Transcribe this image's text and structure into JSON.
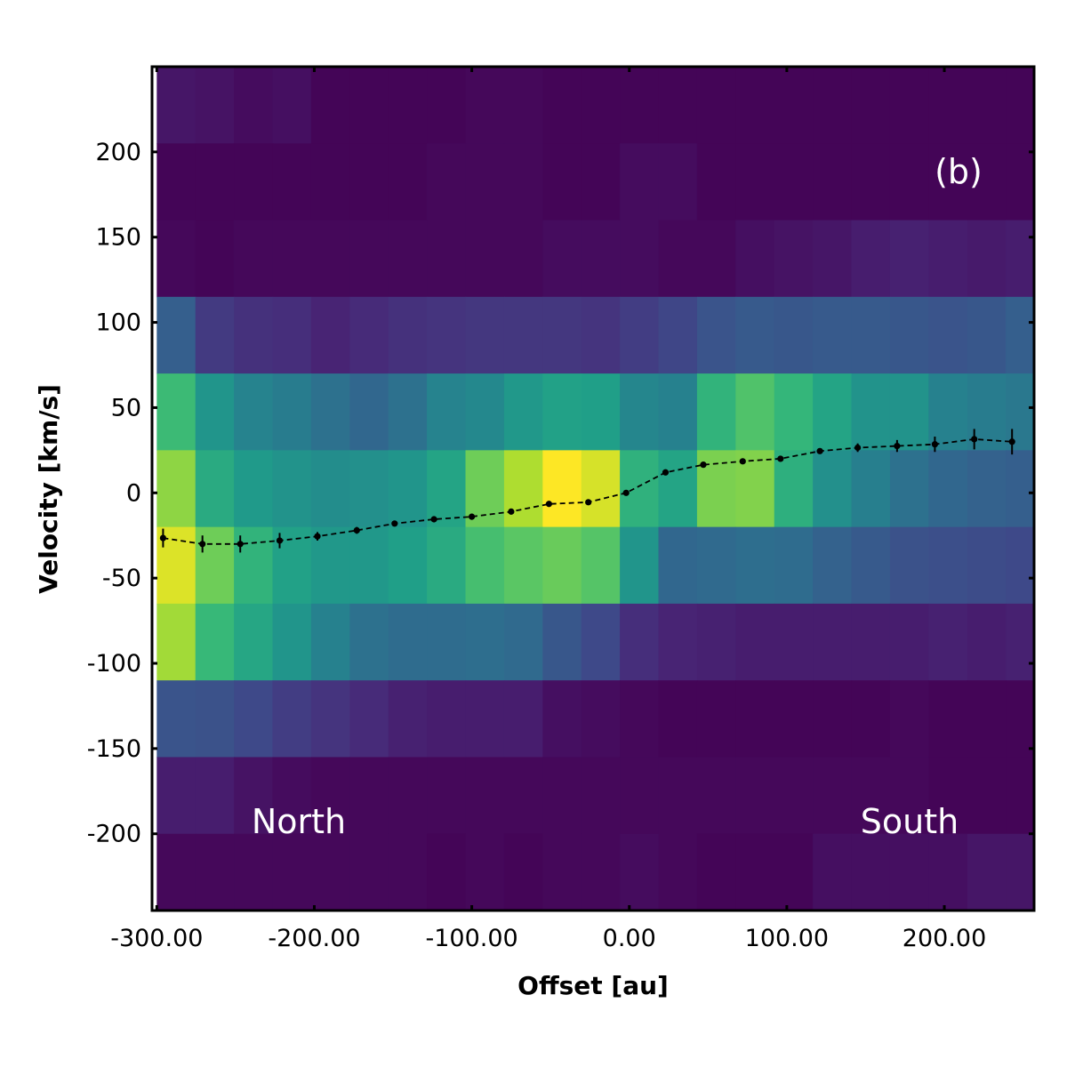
{
  "chart_data": {
    "type": "heatmap",
    "title": "",
    "panel_label": "(b)",
    "xlabel": "Offset [au]",
    "ylabel": "Velocity [km/s]",
    "xlim": [
      -303,
      257
    ],
    "ylim": [
      -245,
      250
    ],
    "x_ticks": [
      -300,
      -200,
      -100,
      0,
      100,
      200
    ],
    "x_tick_labels": [
      "-300.00",
      "-200.00",
      "-100.00",
      "0.00",
      "100.00",
      "200.00"
    ],
    "y_ticks": [
      200,
      150,
      100,
      50,
      0,
      -50,
      -100,
      -150,
      -200
    ],
    "y_tick_labels": [
      "200",
      "150",
      "100",
      "50",
      "0",
      "-50",
      "-100",
      "-150",
      "-200"
    ],
    "annotations": [
      {
        "text": "North",
        "x": -237,
        "y": -192
      },
      {
        "text": "South",
        "x": 150,
        "y": -192
      }
    ],
    "heatmap": {
      "colormap": "viridis",
      "x_edges": [
        -300,
        -275.5,
        -251,
        -226.5,
        -202,
        -177.5,
        -153,
        -128.5,
        -104,
        -79.5,
        -55,
        -30.5,
        -6,
        18.5,
        43,
        67.5,
        92,
        116.5,
        141,
        165.5,
        190,
        214.5,
        239,
        257
      ],
      "y_edges": [
        250,
        205,
        160,
        115,
        70,
        25,
        -20,
        -65,
        -110,
        -155,
        -200,
        -245
      ],
      "values": [
        [
          0.06,
          0.05,
          0.03,
          0.04,
          0.01,
          0.01,
          0.01,
          0.01,
          0.02,
          0.02,
          0.01,
          0.01,
          0.01,
          0.01,
          0.01,
          0.01,
          0.01,
          0.01,
          0.01,
          0.01,
          0.01,
          0.01,
          0.01
        ],
        [
          0.01,
          0.01,
          0.01,
          0.01,
          0.01,
          0.01,
          0.01,
          0.02,
          0.02,
          0.02,
          0.01,
          0.01,
          0.03,
          0.03,
          0.01,
          0.01,
          0.01,
          0.01,
          0.01,
          0.01,
          0.01,
          0.01,
          0.01
        ],
        [
          0.02,
          0.01,
          0.02,
          0.02,
          0.02,
          0.02,
          0.02,
          0.02,
          0.02,
          0.02,
          0.03,
          0.03,
          0.03,
          0.02,
          0.02,
          0.04,
          0.05,
          0.06,
          0.08,
          0.09,
          0.08,
          0.07,
          0.08
        ],
        [
          0.3,
          0.17,
          0.14,
          0.13,
          0.1,
          0.12,
          0.14,
          0.15,
          0.16,
          0.16,
          0.16,
          0.15,
          0.18,
          0.21,
          0.26,
          0.28,
          0.27,
          0.28,
          0.28,
          0.27,
          0.26,
          0.27,
          0.3
        ],
        [
          0.68,
          0.52,
          0.45,
          0.42,
          0.37,
          0.33,
          0.37,
          0.45,
          0.47,
          0.53,
          0.57,
          0.56,
          0.46,
          0.44,
          0.65,
          0.72,
          0.66,
          0.58,
          0.51,
          0.51,
          0.44,
          0.42,
          0.4
        ],
        [
          0.83,
          0.61,
          0.54,
          0.51,
          0.49,
          0.5,
          0.52,
          0.58,
          0.78,
          0.88,
          1.0,
          0.94,
          0.64,
          0.58,
          0.8,
          0.81,
          0.63,
          0.5,
          0.43,
          0.37,
          0.33,
          0.31,
          0.3
        ],
        [
          0.95,
          0.78,
          0.65,
          0.57,
          0.53,
          0.53,
          0.56,
          0.61,
          0.7,
          0.74,
          0.77,
          0.73,
          0.52,
          0.33,
          0.34,
          0.36,
          0.35,
          0.31,
          0.28,
          0.25,
          0.24,
          0.23,
          0.22
        ],
        [
          0.86,
          0.67,
          0.59,
          0.52,
          0.44,
          0.37,
          0.35,
          0.35,
          0.36,
          0.34,
          0.27,
          0.22,
          0.13,
          0.1,
          0.09,
          0.08,
          0.08,
          0.08,
          0.08,
          0.08,
          0.09,
          0.08,
          0.09
        ],
        [
          0.26,
          0.25,
          0.22,
          0.18,
          0.15,
          0.12,
          0.09,
          0.08,
          0.08,
          0.08,
          0.04,
          0.03,
          0.02,
          0.01,
          0.01,
          0.01,
          0.01,
          0.01,
          0.01,
          0.02,
          0.01,
          0.01,
          0.01
        ],
        [
          0.08,
          0.08,
          0.05,
          0.03,
          0.02,
          0.02,
          0.02,
          0.02,
          0.02,
          0.02,
          0.02,
          0.02,
          0.02,
          0.02,
          0.02,
          0.02,
          0.02,
          0.02,
          0.02,
          0.02,
          0.01,
          0.01,
          0.01
        ],
        [
          0.02,
          0.02,
          0.02,
          0.02,
          0.02,
          0.02,
          0.02,
          0.01,
          0.02,
          0.01,
          0.02,
          0.02,
          0.03,
          0.02,
          0.01,
          0.01,
          0.01,
          0.04,
          0.04,
          0.04,
          0.04,
          0.06,
          0.06
        ]
      ]
    },
    "series": [
      {
        "name": "centroid velocity",
        "style": "dashed line with markers and error bars",
        "color": "#000000",
        "points": [
          {
            "x": -296,
            "y": -26.5,
            "err": 5.5
          },
          {
            "x": -271,
            "y": -30,
            "err": 5
          },
          {
            "x": -247,
            "y": -30,
            "err": 5
          },
          {
            "x": -222,
            "y": -28,
            "err": 4.5
          },
          {
            "x": -198,
            "y": -25.5,
            "err": 2.5
          },
          {
            "x": -173,
            "y": -22,
            "err": 2
          },
          {
            "x": -149,
            "y": -18,
            "err": 1.5
          },
          {
            "x": -124,
            "y": -15.5,
            "err": 1.5
          },
          {
            "x": -100,
            "y": -14,
            "err": 1.5
          },
          {
            "x": -75,
            "y": -11,
            "err": 1.5
          },
          {
            "x": -51,
            "y": -6.5,
            "err": 1.5
          },
          {
            "x": -26,
            "y": -5.5,
            "err": 1.5
          },
          {
            "x": -2,
            "y": 0,
            "err": 1.5
          },
          {
            "x": 23,
            "y": 12,
            "err": 1.5
          },
          {
            "x": 47,
            "y": 16.5,
            "err": 1.5
          },
          {
            "x": 72,
            "y": 18.5,
            "err": 1.5
          },
          {
            "x": 96,
            "y": 20,
            "err": 1.5
          },
          {
            "x": 121,
            "y": 24.5,
            "err": 1.5
          },
          {
            "x": 145,
            "y": 26.5,
            "err": 2.5
          },
          {
            "x": 170,
            "y": 27.5,
            "err": 3.5
          },
          {
            "x": 194,
            "y": 28.5,
            "err": 4.5
          },
          {
            "x": 219,
            "y": 31.5,
            "err": 6
          },
          {
            "x": 243,
            "y": 30,
            "err": 7.5
          }
        ]
      }
    ]
  }
}
